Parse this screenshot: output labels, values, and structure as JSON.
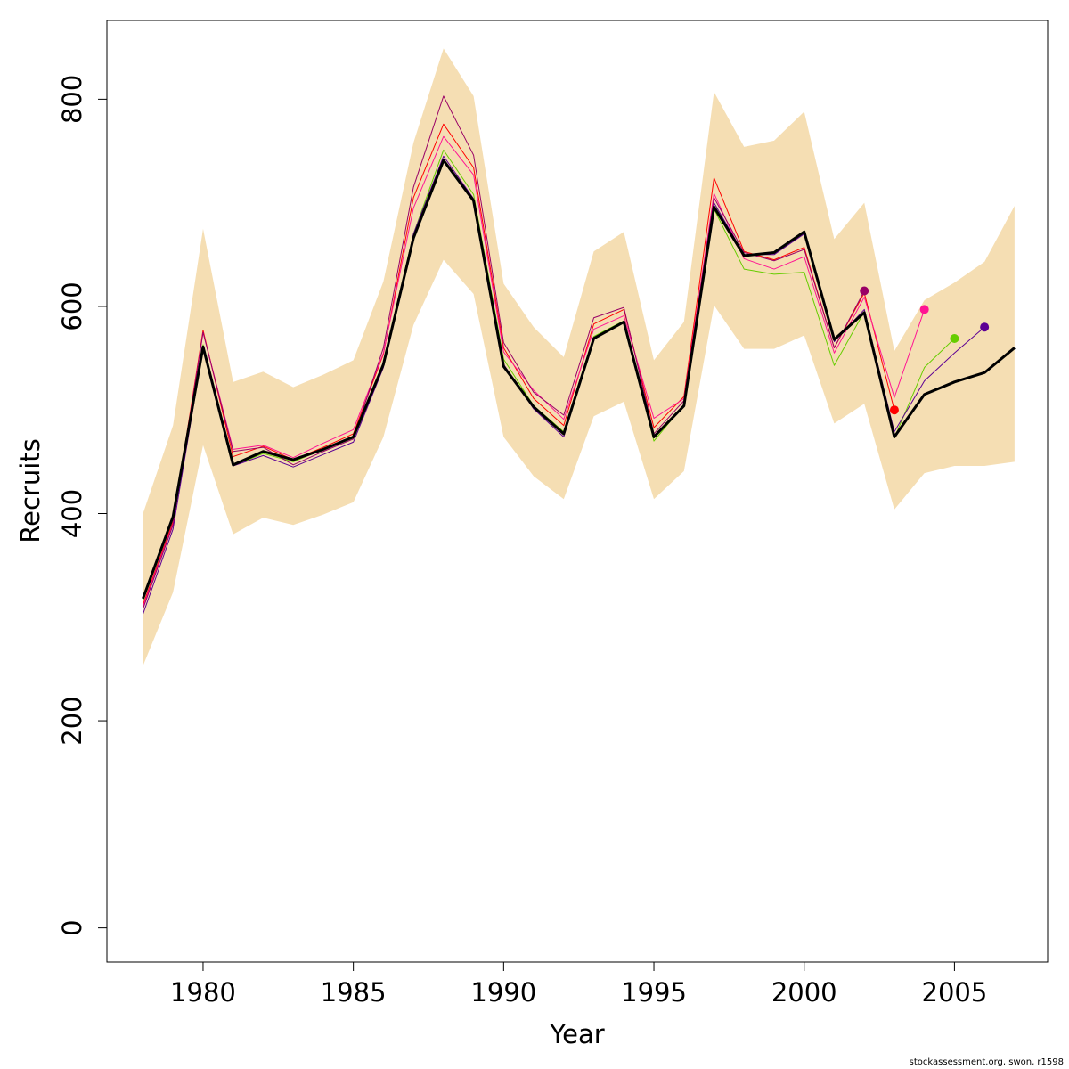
{
  "chart_data": {
    "type": "line",
    "xlabel": "Year",
    "ylabel": "Recruits",
    "xlim": [
      1976.8,
      2008.1
    ],
    "ylim": [
      -33,
      876
    ],
    "x_ticks": [
      1980,
      1985,
      1990,
      1995,
      2000,
      2005
    ],
    "y_ticks": [
      0,
      200,
      400,
      600,
      800
    ],
    "grid": false,
    "band": {
      "color": "#f5deb3",
      "x": [
        1978,
        1979,
        1980,
        1981,
        1982,
        1983,
        1984,
        1985,
        1986,
        1987,
        1988,
        1989,
        1990,
        1991,
        1992,
        1993,
        1994,
        1995,
        1996,
        1997,
        1998,
        1999,
        2000,
        2001,
        2002,
        2003,
        2004,
        2005,
        2006,
        2007
      ],
      "upper": [
        400,
        485,
        675,
        527,
        537,
        522,
        534,
        548,
        624,
        758,
        849,
        803,
        622,
        580,
        551,
        653,
        672,
        548,
        585,
        807,
        754,
        760,
        788,
        665,
        700,
        557,
        606,
        623,
        643,
        697
      ],
      "lower": [
        253,
        324,
        466,
        380,
        396,
        389,
        399,
        411,
        474,
        582,
        645,
        612,
        474,
        436,
        414,
        494,
        508,
        414,
        441,
        601,
        559,
        559,
        572,
        487,
        506,
        404,
        439,
        446,
        446,
        450
      ]
    },
    "series": [
      {
        "color": "#ff0000",
        "x": [
          1978,
          1979,
          1980,
          1981,
          1982,
          1983,
          1984,
          1985,
          1986,
          1987,
          1988,
          1989,
          1990,
          1991,
          1992,
          1993,
          1994,
          1995,
          1996,
          1997,
          1998,
          1999,
          2000,
          2001,
          2002,
          2003
        ],
        "y": [
          312,
          392,
          577,
          455,
          465,
          452,
          464,
          477,
          554,
          705,
          776,
          734,
          560,
          511,
          485,
          583,
          597,
          483,
          513,
          724,
          653,
          645,
          657,
          560,
          613,
          500
        ],
        "end_marker": true
      },
      {
        "color": "#ff1493",
        "x": [
          1978,
          1979,
          1980,
          1981,
          1982,
          1983,
          1984,
          1985,
          1986,
          1987,
          1988,
          1989,
          1990,
          1991,
          1992,
          1993,
          1994,
          1995,
          1996,
          1997,
          1998,
          1999,
          2000,
          2001,
          2002,
          2003,
          2004
        ],
        "y": [
          310,
          390,
          575,
          462,
          466,
          454,
          468,
          481,
          555,
          695,
          764,
          727,
          556,
          519,
          491,
          578,
          591,
          492,
          511,
          709,
          646,
          636,
          648,
          555,
          609,
          512,
          597
        ],
        "end_marker": true
      },
      {
        "color": "#66cd00",
        "x": [
          1978,
          1979,
          1980,
          1981,
          1982,
          1983,
          1984,
          1985,
          1986,
          1987,
          1988,
          1989,
          1990,
          1991,
          1992,
          1993,
          1994,
          1995,
          1996,
          1997,
          1998,
          1999,
          2000,
          2001,
          2002,
          2003,
          2004,
          2005
        ],
        "y": [
          316,
          398,
          563,
          446,
          458,
          450,
          462,
          473,
          545,
          670,
          751,
          708,
          549,
          504,
          479,
          571,
          586,
          470,
          505,
          694,
          636,
          631,
          633,
          543,
          595,
          473,
          541,
          569
        ],
        "end_marker": true
      },
      {
        "color": "#5d0094",
        "x": [
          1978,
          1979,
          1980,
          1981,
          1982,
          1983,
          1984,
          1985,
          1986,
          1987,
          1988,
          1989,
          1990,
          1991,
          1992,
          1993,
          1994,
          1995,
          1996,
          1997,
          1998,
          1999,
          2000,
          2001,
          2002,
          2003,
          2004,
          2005,
          2006
        ],
        "y": [
          303,
          385,
          560,
          446,
          456,
          445,
          457,
          469,
          541,
          670,
          745,
          704,
          544,
          501,
          474,
          570,
          585,
          474,
          504,
          700,
          650,
          650,
          670,
          566,
          597,
          479,
          528,
          555,
          580
        ],
        "end_marker": true
      },
      {
        "color": "#990066",
        "x": [
          1978,
          1979,
          1980,
          1981,
          1982,
          1983,
          1984,
          1985,
          1986,
          1987,
          1988,
          1989,
          1990,
          1991,
          1992,
          1993,
          1994,
          1995,
          1996,
          1997,
          1998,
          1999,
          2000,
          2001,
          2002
        ],
        "y": [
          308,
          389,
          575,
          460,
          464,
          447,
          460,
          472,
          560,
          715,
          803,
          746,
          565,
          517,
          495,
          589,
          599,
          477,
          509,
          705,
          652,
          644,
          655,
          560,
          615
        ],
        "end_marker": true
      },
      {
        "color": "#000000",
        "bold": true,
        "x": [
          1978,
          1979,
          1980,
          1981,
          1982,
          1983,
          1984,
          1985,
          1986,
          1987,
          1988,
          1989,
          1990,
          1991,
          1992,
          1993,
          1994,
          1995,
          1996,
          1997,
          1998,
          1999,
          2000,
          2001,
          2002,
          2003,
          2004,
          2005,
          2006,
          2007
        ],
        "y": [
          318,
          397,
          561,
          447,
          460,
          452,
          462,
          474,
          544,
          666,
          741,
          702,
          542,
          503,
          477,
          569,
          585,
          474,
          504,
          696,
          649,
          652,
          672,
          568,
          594,
          474,
          515,
          527,
          536,
          560
        ],
        "end_marker": false
      }
    ]
  },
  "footer": "stockassessment.org, swon, r1598"
}
